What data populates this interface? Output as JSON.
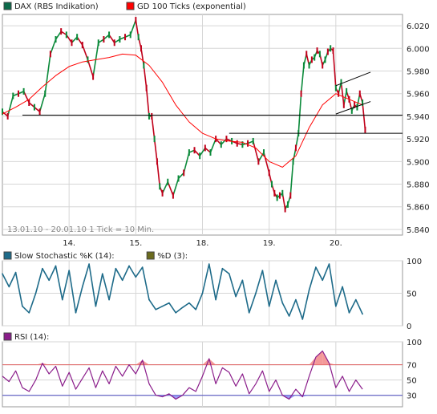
{
  "chart_data": [
    {
      "type": "line",
      "panel": "price",
      "legend": [
        {
          "name": "DAX (RBS Indikation)",
          "color": "#0b6a4a"
        },
        {
          "name": "GD 100 Ticks (exponential)",
          "color": "#ff0000"
        }
      ],
      "footnote": "13.01.10 - 20.01.10   1 Tick = 10 Min.",
      "xlabels": [
        "14.",
        "15.",
        "18.",
        "19.",
        "20."
      ],
      "xlabel_ticks": [
        1,
        2,
        3,
        4,
        5
      ],
      "ytick_labels": [
        "5.840",
        "5.860",
        "5.880",
        "5.900",
        "5.920",
        "5.940",
        "5.960",
        "5.980",
        "6.000",
        "6.020"
      ],
      "yticks": [
        5840,
        5860,
        5880,
        5900,
        5920,
        5940,
        5960,
        5980,
        6000,
        6020
      ],
      "ylim": [
        5835,
        6030
      ],
      "xlim": [
        0,
        6.0
      ],
      "grid": true,
      "series": [
        {
          "name": "DAX (RBS Indikation)",
          "color_up": "#0b8a3a",
          "color_down": "#c0001a",
          "x": [
            0.0,
            0.08,
            0.16,
            0.24,
            0.32,
            0.4,
            0.48,
            0.56,
            0.64,
            0.72,
            0.8,
            0.88,
            0.96,
            1.04,
            1.12,
            1.2,
            1.28,
            1.36,
            1.44,
            1.52,
            1.6,
            1.68,
            1.76,
            1.84,
            1.92,
            2.0,
            2.04,
            2.08,
            2.12,
            2.16,
            2.2,
            2.24,
            2.28,
            2.32,
            2.36,
            2.4,
            2.48,
            2.56,
            2.64,
            2.72,
            2.8,
            2.88,
            2.96,
            3.04,
            3.12,
            3.2,
            3.28,
            3.36,
            3.44,
            3.52,
            3.6,
            3.68,
            3.76,
            3.84,
            3.92,
            4.0,
            4.04,
            4.08,
            4.12,
            4.16,
            4.2,
            4.24,
            4.28,
            4.32,
            4.36,
            4.4,
            4.44,
            4.48,
            4.52,
            4.56,
            4.6,
            4.64,
            4.68,
            4.72,
            4.76,
            4.8,
            4.84,
            4.88,
            4.92,
            4.96,
            5.0,
            5.04,
            5.08,
            5.12,
            5.16,
            5.2,
            5.24,
            5.28,
            5.32,
            5.36,
            5.4,
            5.44
          ],
          "values": [
            5944,
            5940,
            5958,
            5960,
            5962,
            5952,
            5948,
            5944,
            5960,
            5995,
            6008,
            6015,
            6012,
            6005,
            6010,
            6003,
            5990,
            5975,
            6005,
            6008,
            6012,
            6005,
            6008,
            6010,
            6012,
            6025,
            6010,
            6000,
            5985,
            5965,
            5940,
            5940,
            5920,
            5900,
            5878,
            5872,
            5882,
            5870,
            5885,
            5890,
            5908,
            5910,
            5905,
            5912,
            5908,
            5920,
            5915,
            5920,
            5918,
            5916,
            5915,
            5916,
            5918,
            5900,
            5908,
            5890,
            5880,
            5872,
            5868,
            5870,
            5872,
            5858,
            5862,
            5870,
            5900,
            5912,
            5925,
            5960,
            5985,
            5995,
            5985,
            5990,
            5992,
            5998,
            5995,
            5985,
            5990,
            5997,
            6000,
            5998,
            5965,
            5960,
            5970,
            5950,
            5962,
            5955,
            5945,
            5950,
            5948,
            5960,
            5952,
            5928
          ]
        },
        {
          "name": "GD 100 Ticks (exponential)",
          "color": "#ff0000",
          "x": [
            0.0,
            0.2,
            0.4,
            0.6,
            0.8,
            1.0,
            1.2,
            1.4,
            1.6,
            1.8,
            2.0,
            2.2,
            2.4,
            2.6,
            2.8,
            3.0,
            3.2,
            3.4,
            3.6,
            3.8,
            4.0,
            4.2,
            4.4,
            4.6,
            4.8,
            5.0,
            5.2,
            5.4
          ],
          "values": [
            5942,
            5948,
            5955,
            5966,
            5976,
            5984,
            5988,
            5990,
            5992,
            5995,
            5994,
            5985,
            5970,
            5950,
            5935,
            5925,
            5920,
            5918,
            5917,
            5912,
            5900,
            5895,
            5905,
            5930,
            5950,
            5960,
            5955,
            5950
          ]
        }
      ],
      "annotations": [
        {
          "type": "hline",
          "y": 5941,
          "x0": 0.3,
          "x1": 6.0,
          "color": "#000000"
        },
        {
          "type": "hline",
          "y": 5925,
          "x0": 3.4,
          "x1": 6.0,
          "color": "#000000"
        },
        {
          "type": "trendline",
          "x0": 5.0,
          "y0": 5967,
          "x1": 5.52,
          "y1": 5979,
          "color": "#000000"
        },
        {
          "type": "trendline",
          "x0": 5.0,
          "y0": 5942,
          "x1": 5.52,
          "y1": 5953,
          "color": "#000000"
        }
      ]
    },
    {
      "type": "line",
      "panel": "stochastic",
      "legend": [
        {
          "name": "Slow Stochastic %K (14):",
          "color": "#1e6b8a"
        },
        {
          "name": "%D (3):",
          "color": "#6b6b1e"
        }
      ],
      "ytick_labels": [
        "0",
        "50",
        "100"
      ],
      "yticks": [
        0,
        50,
        100
      ],
      "ylim": [
        0,
        100
      ],
      "xlim": [
        0,
        6.0
      ],
      "grid": true,
      "series": [
        {
          "name": "Slow Stochastic %K (14):",
          "color": "#1e6b8a",
          "x": [
            0.0,
            0.1,
            0.2,
            0.3,
            0.4,
            0.5,
            0.6,
            0.7,
            0.8,
            0.9,
            1.0,
            1.1,
            1.2,
            1.3,
            1.4,
            1.5,
            1.6,
            1.7,
            1.8,
            1.9,
            2.0,
            2.1,
            2.2,
            2.3,
            2.4,
            2.5,
            2.6,
            2.7,
            2.8,
            2.9,
            3.0,
            3.1,
            3.2,
            3.3,
            3.4,
            3.5,
            3.6,
            3.7,
            3.8,
            3.9,
            4.0,
            4.1,
            4.2,
            4.3,
            4.4,
            4.5,
            4.6,
            4.7,
            4.8,
            4.9,
            5.0,
            5.1,
            5.2,
            5.3,
            5.4
          ],
          "values": [
            80,
            60,
            82,
            30,
            20,
            50,
            88,
            70,
            92,
            40,
            85,
            20,
            60,
            95,
            30,
            80,
            40,
            88,
            70,
            92,
            75,
            90,
            40,
            25,
            30,
            35,
            20,
            28,
            35,
            25,
            50,
            95,
            40,
            88,
            80,
            45,
            70,
            20,
            50,
            85,
            30,
            70,
            35,
            15,
            40,
            10,
            55,
            90,
            70,
            95,
            30,
            60,
            20,
            40,
            18
          ]
        }
      ]
    },
    {
      "type": "line",
      "panel": "rsi",
      "legend": [
        {
          "name": "RSI (14):",
          "color": "#8b1e8b"
        }
      ],
      "ytick_labels": [
        "30",
        "50",
        "70",
        "100"
      ],
      "yticks": [
        30,
        50,
        70,
        100
      ],
      "ylim": [
        15,
        100
      ],
      "xlim": [
        0,
        6.0
      ],
      "thresholds": [
        {
          "y": 70,
          "color": "#e06060"
        },
        {
          "y": 30,
          "color": "#4a4ac0"
        }
      ],
      "grid": true,
      "series": [
        {
          "name": "RSI (14):",
          "color": "#8b1e8b",
          "x": [
            0.0,
            0.1,
            0.2,
            0.3,
            0.4,
            0.5,
            0.6,
            0.7,
            0.8,
            0.9,
            1.0,
            1.1,
            1.2,
            1.3,
            1.4,
            1.5,
            1.6,
            1.7,
            1.8,
            1.9,
            2.0,
            2.1,
            2.2,
            2.3,
            2.4,
            2.5,
            2.6,
            2.7,
            2.8,
            2.9,
            3.0,
            3.1,
            3.2,
            3.3,
            3.4,
            3.5,
            3.6,
            3.7,
            3.8,
            3.9,
            4.0,
            4.1,
            4.2,
            4.3,
            4.4,
            4.5,
            4.6,
            4.7,
            4.8,
            4.9,
            5.0,
            5.1,
            5.2,
            5.3,
            5.4
          ],
          "values": [
            55,
            48,
            62,
            40,
            35,
            50,
            72,
            58,
            68,
            42,
            60,
            38,
            52,
            66,
            40,
            62,
            45,
            68,
            55,
            70,
            58,
            76,
            45,
            30,
            28,
            32,
            25,
            30,
            40,
            35,
            55,
            78,
            45,
            66,
            60,
            42,
            58,
            32,
            45,
            62,
            35,
            50,
            30,
            25,
            38,
            28,
            55,
            80,
            88,
            72,
            40,
            55,
            35,
            50,
            38
          ]
        }
      ]
    }
  ]
}
